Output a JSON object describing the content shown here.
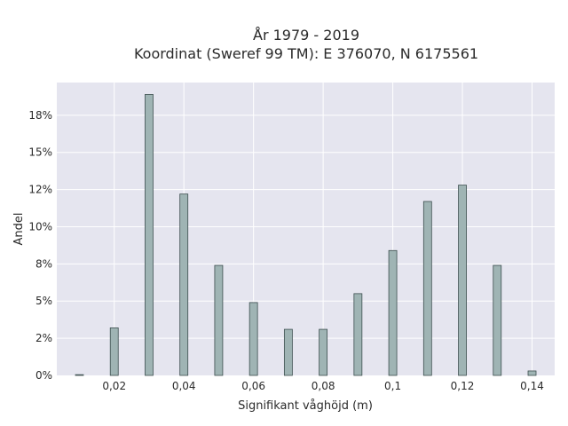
{
  "chart_data": {
    "type": "bar",
    "title": "År 1979 - 2019",
    "subtitle": "Koordinat (Sweref 99 TM): E 376070, N 6175561",
    "xlabel": "Signifikant våghöjd (m)",
    "ylabel": "Andel",
    "x": [
      0.01,
      0.02,
      0.03,
      0.04,
      0.05,
      0.06,
      0.07,
      0.08,
      0.09,
      0.1,
      0.11,
      0.12,
      0.13,
      0.14
    ],
    "values": [
      0.05,
      3.2,
      18.9,
      12.2,
      7.4,
      4.9,
      3.1,
      3.1,
      5.5,
      8.4,
      11.7,
      12.8,
      7.4,
      0.3
    ],
    "xlim": [
      0.0035,
      0.1465
    ],
    "ylim": [
      0,
      19.7
    ],
    "x_ticks": [
      0.02,
      0.04,
      0.06,
      0.08,
      0.1,
      0.12,
      0.14
    ],
    "x_tick_labels": [
      "0,02",
      "0,04",
      "0,06",
      "0,08",
      "0,1",
      "0,12",
      "0,14"
    ],
    "y_ticks": [
      0,
      2.5,
      5,
      7.5,
      10,
      12.5,
      15,
      17.5
    ],
    "y_tick_labels": [
      "0%",
      "2%",
      "5%",
      "8%",
      "10%",
      "12%",
      "15%",
      "18%"
    ],
    "grid": true,
    "colors": {
      "bar_fill": "#9fb4b4",
      "bar_stroke": "#3d4f4f",
      "plot_background": "#e5e5ef",
      "grid": "#ffffff"
    }
  }
}
